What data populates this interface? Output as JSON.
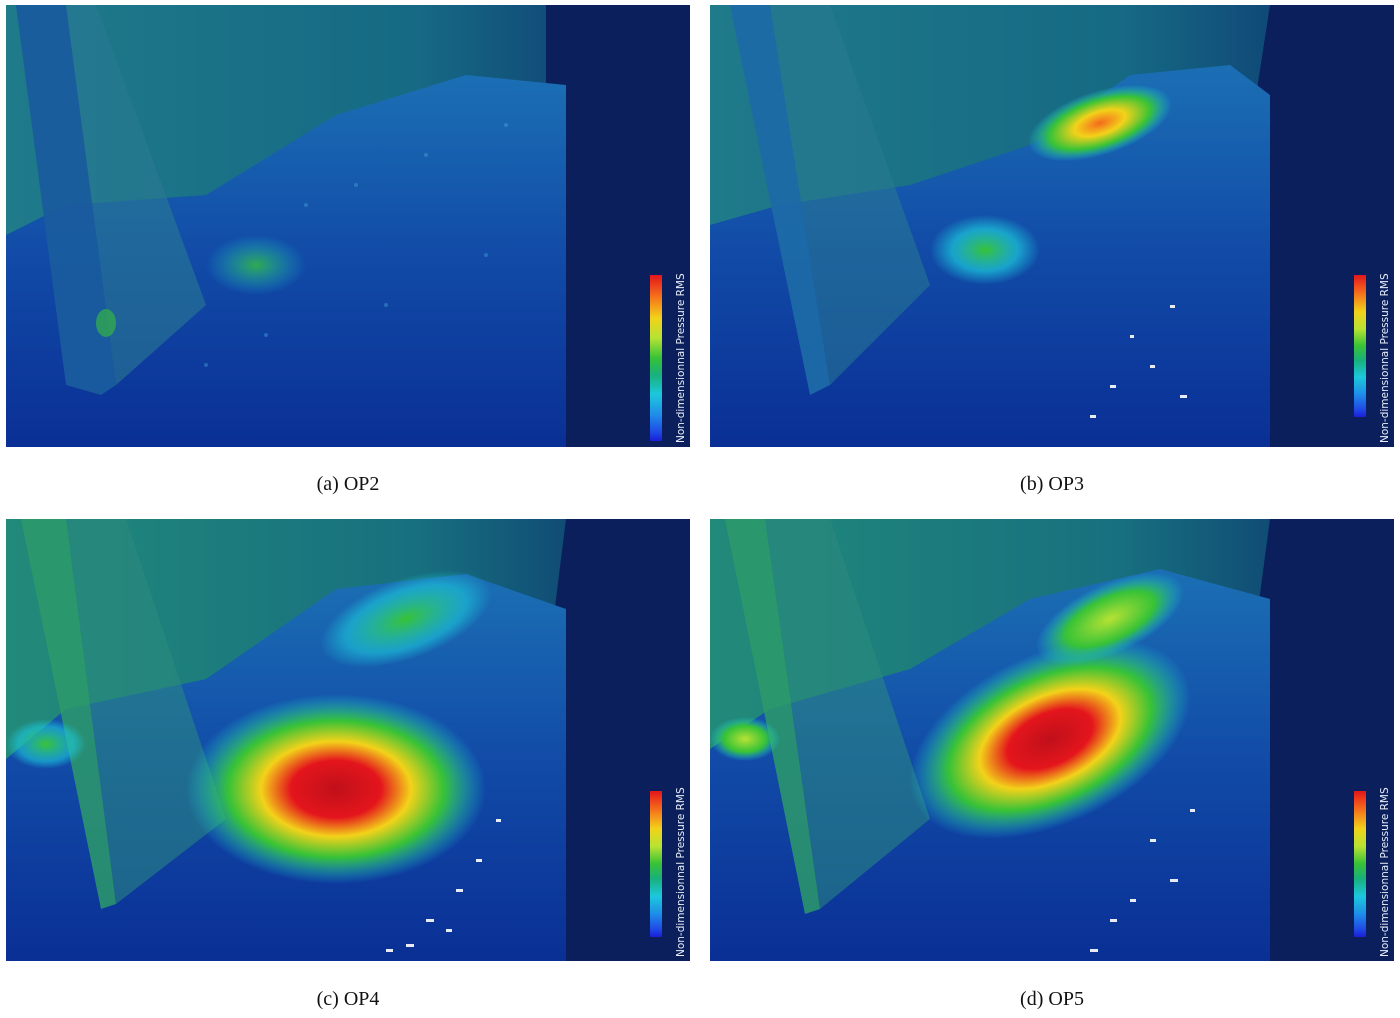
{
  "figure": {
    "panels": [
      {
        "id": "a",
        "caption_label": "(a)",
        "caption_text": "OP2",
        "hotspot_intensity": 0.15
      },
      {
        "id": "b",
        "caption_label": "(b)",
        "caption_text": "OP3",
        "hotspot_intensity": 0.45
      },
      {
        "id": "c",
        "caption_label": "(c)",
        "caption_text": "OP4",
        "hotspot_intensity": 1.0
      },
      {
        "id": "d",
        "caption_label": "(d)",
        "caption_text": "OP5",
        "hotspot_intensity": 0.95
      }
    ],
    "colorbar_label": "Non-dimensionnal Pressure RMS",
    "colormap": [
      "#1a1fd8",
      "#1f8ee8",
      "#1cc8dc",
      "#37c237",
      "#b6e234",
      "#f3d21a",
      "#f46a1d",
      "#e4151c"
    ]
  }
}
